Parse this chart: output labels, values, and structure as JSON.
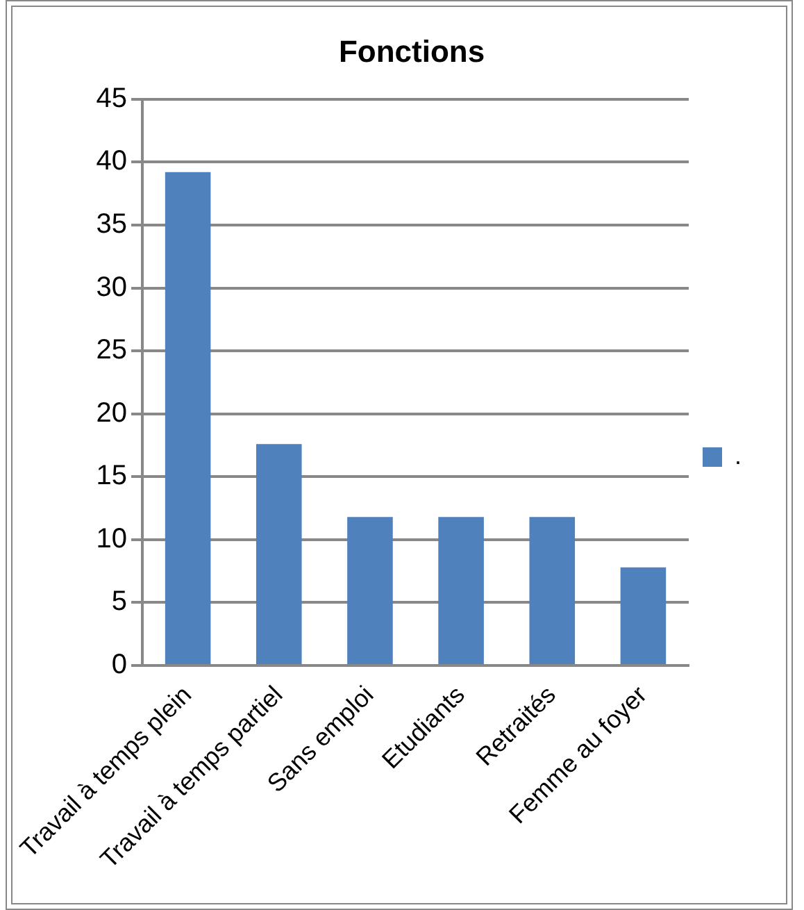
{
  "chart_data": {
    "type": "bar",
    "title": "Fonctions",
    "categories": [
      "Travail à temps plein",
      "Travail à temps partiel",
      "Sans emploi",
      "Etudiants",
      "Retraités",
      "Femme au foyer"
    ],
    "series": [
      {
        "name": ".",
        "color": "#4f81bd",
        "values": [
          39.2,
          17.6,
          11.8,
          11.8,
          11.8,
          7.8
        ]
      }
    ],
    "ylim": [
      0,
      45
    ],
    "yticks": [
      0,
      5,
      10,
      15,
      20,
      25,
      30,
      35,
      40,
      45
    ],
    "grid": "y",
    "legend": "right"
  }
}
